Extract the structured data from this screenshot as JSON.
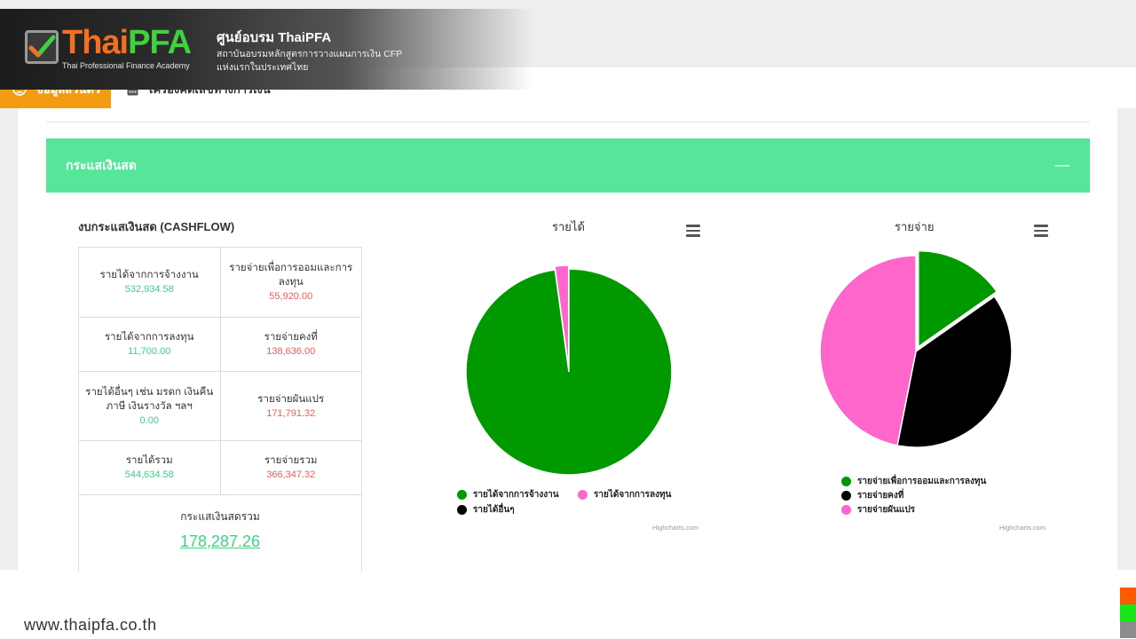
{
  "brand": {
    "logo_part1": "Thai",
    "logo_part2": "PFA",
    "logo_sub": "Thai Professional Finance Academy",
    "title": "ศูนย์อบรม ThaiPFA",
    "line1": "สถาบันอบรมหลักสูตรการวางแผนการเงิน CFP",
    "line2": "แห่งแรกในประเทศไทย"
  },
  "nav": {
    "tab_personal": "ข้อมูลส่วนตัว",
    "tab_calculator": "เครื่องคิดเลขทางการเงิน"
  },
  "section": {
    "title": "กระแสเงินสด",
    "collapse_symbol": "—"
  },
  "cashflow": {
    "title": "งบกระแสเงินสด (CASHFLOW)",
    "rows": [
      {
        "in_label": "รายได้จากการจ้างงาน",
        "in_value": "532,934.58",
        "out_label": "รายจ่ายเพื่อการออมและการลงทุน",
        "out_value": "55,920.00"
      },
      {
        "in_label": "รายได้จากการลงทุน",
        "in_value": "11,700.00",
        "out_label": "รายจ่ายคงที่",
        "out_value": "138,636.00"
      },
      {
        "in_label": "รายได้อื่นๆ เช่น มรดก เงินคืนภาษี เงินรางวัล ฯลฯ",
        "in_value": "0.00",
        "out_label": "รายจ่ายผันแปร",
        "out_value": "171,791.32"
      },
      {
        "in_label": "รายได้รวม",
        "in_value": "544,634.58",
        "out_label": "รายจ่ายรวม",
        "out_value": "366,347.32"
      }
    ],
    "net_label": "กระแสเงินสดรวม",
    "net_value": "178,287.26"
  },
  "chart_data": [
    {
      "type": "pie",
      "title": "รายได้",
      "series": [
        {
          "name": "รายได้จากการจ้างงาน",
          "value": 532934.58,
          "color": "#009900"
        },
        {
          "name": "รายได้จากการลงทุน",
          "value": 11700.0,
          "color": "#ff66cc"
        },
        {
          "name": "รายได้อื่นๆ",
          "value": 0.0,
          "color": "#000000"
        }
      ],
      "credit": "Highcharts.com"
    },
    {
      "type": "pie",
      "title": "รายจ่าย",
      "series": [
        {
          "name": "รายจ่ายเพื่อการออมและการลงทุน",
          "value": 55920.0,
          "color": "#009900"
        },
        {
          "name": "รายจ่ายคงที่",
          "value": 138636.0,
          "color": "#000000"
        },
        {
          "name": "รายจ่ายผันแปร",
          "value": 171791.32,
          "color": "#ff66cc"
        }
      ],
      "credit": "Highcharts.com"
    }
  ],
  "footer": {
    "url": "www.thaipfa.co.th",
    "accent_colors": [
      "#ff5a00",
      "#19e619",
      "#8c8c8c"
    ]
  },
  "colors": {
    "section_header": "#55e69a",
    "active_tab": "#f39c12",
    "income_value": "#3cd286",
    "expense_value": "#f05a5a"
  }
}
